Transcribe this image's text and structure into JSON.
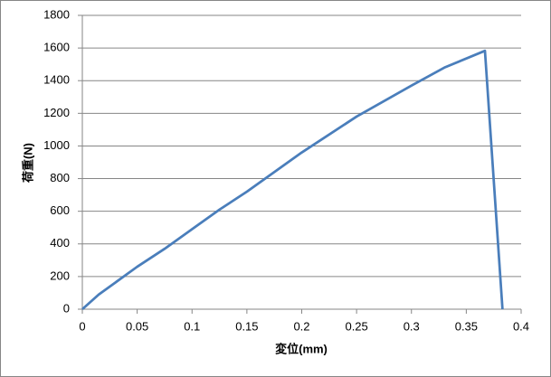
{
  "chart_data": {
    "type": "line",
    "xlabel": "変位(mm)",
    "ylabel": "荷重(N)",
    "x": [
      0,
      0.015,
      0.05,
      0.075,
      0.1,
      0.125,
      0.15,
      0.2,
      0.25,
      0.3,
      0.33,
      0.367,
      0.383
    ],
    "values": [
      0,
      90,
      260,
      370,
      490,
      610,
      720,
      960,
      1180,
      1370,
      1480,
      1583,
      0
    ],
    "color": "#4a7ebb",
    "xlim": [
      0,
      0.4
    ],
    "xticks": [
      0,
      0.05,
      0.1,
      0.15,
      0.2,
      0.25,
      0.3,
      0.35,
      0.4
    ],
    "ylim": [
      0,
      1800
    ],
    "yticks": [
      0,
      200,
      400,
      600,
      800,
      1000,
      1200,
      1400,
      1600,
      1800
    ],
    "grid": true
  }
}
